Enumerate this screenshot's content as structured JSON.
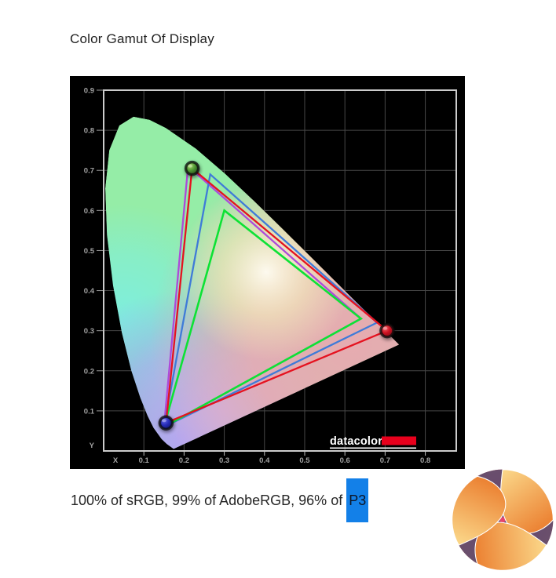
{
  "title": "Color Gamut Of Display",
  "caption": {
    "prefix": "100% of sRGB, 99% of AdobeRGB, 96% of ",
    "highlighted": "P3",
    "highlight_color": "#1380e8"
  },
  "branding": {
    "datacolor_label": "datacolor",
    "datacolor_red": "#e8001c"
  },
  "chart_data": {
    "type": "line",
    "subtype": "cie1931-chromaticity-diagram",
    "title": "",
    "xlabel": "X",
    "ylabel": "Y",
    "xlim": [
      0,
      0.877
    ],
    "ylim": [
      0,
      0.9
    ],
    "x_ticks": [
      0.1,
      0.2,
      0.3,
      0.4,
      0.5,
      0.6,
      0.7,
      0.8
    ],
    "y_ticks": [
      0.1,
      0.2,
      0.3,
      0.4,
      0.5,
      0.6,
      0.7,
      0.8,
      0.9
    ],
    "grid": true,
    "plot_background": "#000000",
    "grid_color": "#474747",
    "frame_color": "#cccccc",
    "series": [
      {
        "name": "AdobeRGB",
        "color": "#ad49da",
        "points": [
          [
            0.21,
            0.71
          ],
          [
            0.64,
            0.33
          ],
          [
            0.15,
            0.06
          ]
        ]
      },
      {
        "name": "DCI-P3",
        "color": "#3f7bd8",
        "points": [
          [
            0.265,
            0.69
          ],
          [
            0.68,
            0.32
          ],
          [
            0.15,
            0.06
          ]
        ]
      },
      {
        "name": "sRGB",
        "color": "#0de235",
        "points": [
          [
            0.3,
            0.6
          ],
          [
            0.64,
            0.33
          ],
          [
            0.15,
            0.06
          ]
        ]
      },
      {
        "name": "Display",
        "color": "#e5121f",
        "points": [
          [
            0.22,
            0.705
          ],
          [
            0.705,
            0.3
          ],
          [
            0.155,
            0.07
          ]
        ]
      }
    ],
    "markers": [
      {
        "name": "green-primary",
        "x": 0.22,
        "y": 0.705,
        "color": "#3f8f2b"
      },
      {
        "name": "red-primary",
        "x": 0.705,
        "y": 0.3,
        "color": "#cc1120"
      },
      {
        "name": "blue-primary",
        "x": 0.155,
        "y": 0.07,
        "color": "#272cb8"
      }
    ],
    "coverage": {
      "sRGB": "100%",
      "AdobeRGB": "99%",
      "P3": "96%"
    },
    "spectral_locus": [
      [
        0.1741,
        0.005
      ],
      [
        0.1566,
        0.0177
      ],
      [
        0.144,
        0.0297
      ],
      [
        0.1241,
        0.0578
      ],
      [
        0.1096,
        0.0868
      ],
      [
        0.0913,
        0.1327
      ],
      [
        0.0687,
        0.2007
      ],
      [
        0.0454,
        0.295
      ],
      [
        0.0235,
        0.4127
      ],
      [
        0.0082,
        0.5384
      ],
      [
        0.0039,
        0.6548
      ],
      [
        0.0139,
        0.7502
      ],
      [
        0.0389,
        0.812
      ],
      [
        0.0743,
        0.8338
      ],
      [
        0.1142,
        0.8262
      ],
      [
        0.1547,
        0.8059
      ],
      [
        0.2296,
        0.7543
      ],
      [
        0.3016,
        0.6923
      ],
      [
        0.3731,
        0.6245
      ],
      [
        0.4441,
        0.5547
      ],
      [
        0.5125,
        0.4866
      ],
      [
        0.5752,
        0.4242
      ],
      [
        0.627,
        0.3725
      ],
      [
        0.6658,
        0.334
      ],
      [
        0.6915,
        0.3083
      ],
      [
        0.7079,
        0.292
      ],
      [
        0.726,
        0.274
      ],
      [
        0.7347,
        0.2653
      ]
    ]
  }
}
